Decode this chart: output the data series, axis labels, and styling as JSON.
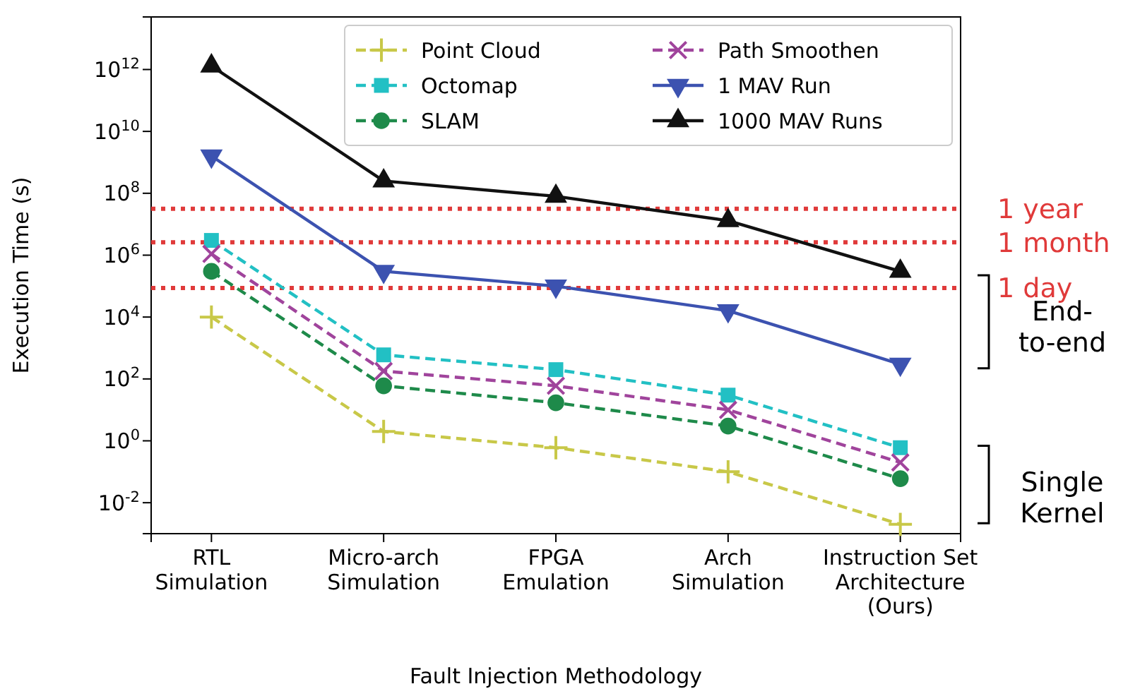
{
  "chart_data": {
    "type": "line",
    "xlabel": "Fault Injection Methodology",
    "ylabel": "Execution Time (s)",
    "categories": [
      "RTL\nSimulation",
      "Micro-arch\nSimulation",
      "FPGA\nEmulation",
      "Arch\nSimulation",
      "Instruction Set\nArchitecture\n(Ours)"
    ],
    "log": "y",
    "ylim": [
      0.001,
      50000000000000
    ],
    "yticks": [
      {
        "value": 0.01,
        "label": "10$^{-2}$"
      },
      {
        "value": 1,
        "label": "10$^{0}$"
      },
      {
        "value": 100,
        "label": "10$^{2}$"
      },
      {
        "value": 10000,
        "label": "10$^{4}$"
      },
      {
        "value": 1000000,
        "label": "10$^{6}$"
      },
      {
        "value": 100000000,
        "label": "10$^{8}$"
      },
      {
        "value": 10000000000,
        "label": "10$^{10}$"
      },
      {
        "value": 1000000000000,
        "label": "10$^{12}$"
      }
    ],
    "grid": false,
    "legend": "top right",
    "series": [
      {
        "name": "Point Cloud",
        "color": "#c8c848",
        "marker": "cross",
        "line_style": "dashed",
        "values": [
          10000,
          2,
          0.6,
          0.1,
          0.002
        ]
      },
      {
        "name": "Octomap",
        "color": "#22c0c4",
        "marker": "square",
        "line_style": "dashed",
        "values": [
          3000000,
          600,
          200,
          30,
          0.6
        ]
      },
      {
        "name": "SLAM",
        "color": "#1e8a4a",
        "marker": "circle",
        "line_style": "dashed",
        "values": [
          300000,
          60,
          17,
          3,
          0.06
        ]
      },
      {
        "name": "Path Smoothen",
        "color": "#a0449c",
        "marker": "x",
        "line_style": "dashed",
        "values": [
          1100000,
          180,
          60,
          10,
          0.2
        ]
      },
      {
        "name": "1 MAV Run",
        "color": "#3c52b0",
        "marker": "triangle-down",
        "line_style": "solid",
        "values": [
          1600000000,
          300000,
          100000,
          16000,
          300
        ]
      },
      {
        "name": "1000 MAV Runs",
        "color": "#111111",
        "marker": "triangle",
        "line_style": "solid",
        "values": [
          1300000000000,
          250000000,
          80000000,
          13000000,
          300000
        ]
      }
    ],
    "ref_lines": [
      {
        "axis": "y",
        "value": 31536000,
        "label": "1 year",
        "color": "#e03a3a",
        "line_style": "dotted"
      },
      {
        "axis": "y",
        "value": 2592000,
        "label": "1 month",
        "color": "#e03a3a",
        "line_style": "dotted"
      },
      {
        "axis": "y",
        "value": 86400,
        "label": "1 day",
        "color": "#e03a3a",
        "line_style": "dotted"
      }
    ],
    "annotations": [
      "End-\nto-end",
      "Single\nKernel"
    ]
  }
}
